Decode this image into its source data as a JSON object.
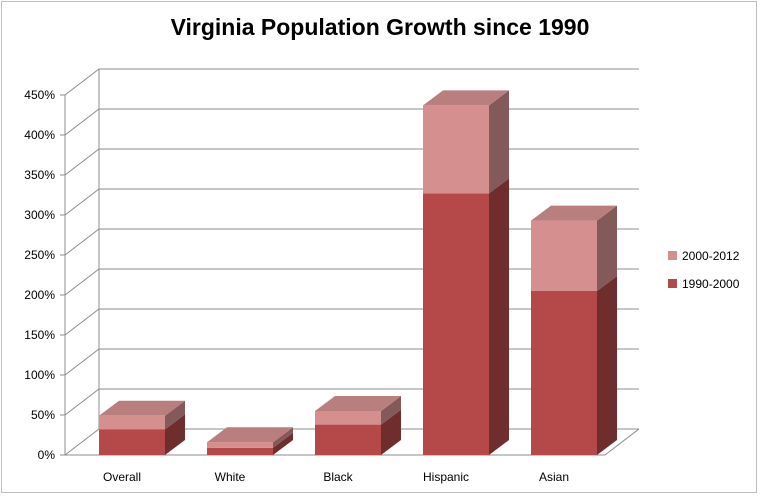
{
  "chart_data": {
    "type": "bar",
    "stacked": true,
    "three_d": true,
    "title": "Virginia Population Growth since 1990",
    "xlabel": "",
    "ylabel": "",
    "categories": [
      "Overall",
      "White",
      "Black",
      "Hispanic",
      "Asian"
    ],
    "series": [
      {
        "name": "1990-2000",
        "values": [
          32,
          9,
          38,
          327,
          205
        ],
        "color": "#b54848"
      },
      {
        "name": "2000-2012",
        "values": [
          17,
          7,
          17,
          110,
          88
        ],
        "color": "#d58f8f"
      }
    ],
    "ylim": [
      0,
      450
    ],
    "y_ticks": [
      0,
      50,
      100,
      150,
      200,
      250,
      300,
      350,
      400,
      450
    ],
    "y_tick_labels": [
      "0%",
      "50%",
      "100%",
      "150%",
      "200%",
      "250%",
      "300%",
      "350%",
      "400%",
      "450%"
    ],
    "grid": true,
    "legend_position": "right",
    "legend_order": [
      "2000-2012",
      "1990-2000"
    ]
  }
}
